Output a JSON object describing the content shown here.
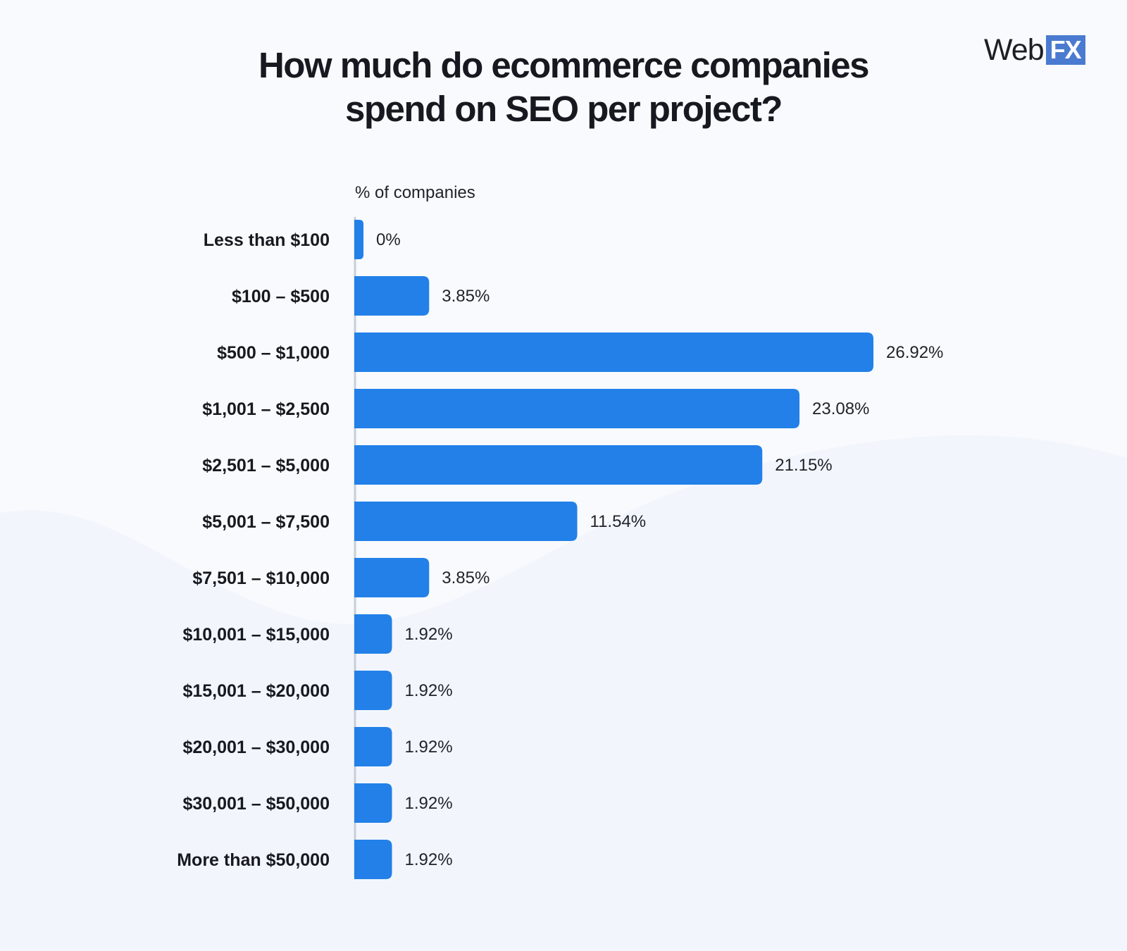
{
  "title_lines": [
    "How much do ecommerce companies",
    "spend on SEO per project?"
  ],
  "logo": {
    "text": "Web",
    "badge": "FX",
    "badge_color": "#4a7bd0"
  },
  "colors": {
    "bar": "#2280e8",
    "axis": "#c9ced6",
    "label": "#16191f",
    "value": "#1f2329"
  },
  "chart_data": {
    "type": "bar",
    "orientation": "horizontal",
    "title": "How much do ecommerce companies spend on SEO per project?",
    "xlabel": "% of companies",
    "ylabel": "",
    "xlim": [
      0,
      26.92
    ],
    "grid": false,
    "categories": [
      "Less than $100",
      "$100 – $500",
      "$500 – $1,000",
      "$1,001 – $2,500",
      "$2,501 – $5,000",
      "$5,001 – $7,500",
      "$7,501 – $10,000",
      "$10,001 – $15,000",
      "$15,001 – $20,000",
      "$20,001 – $30,000",
      "$30,001 – $50,000",
      "More than $50,000"
    ],
    "values": [
      0,
      3.85,
      26.92,
      23.08,
      21.15,
      11.54,
      3.85,
      1.92,
      1.92,
      1.92,
      1.92,
      1.92
    ],
    "value_labels": [
      "0%",
      "3.85%",
      "26.92%",
      "23.08%",
      "21.15%",
      "11.54%",
      "3.85%",
      "1.92%",
      "1.92%",
      "1.92%",
      "1.92%",
      "1.92%"
    ]
  }
}
